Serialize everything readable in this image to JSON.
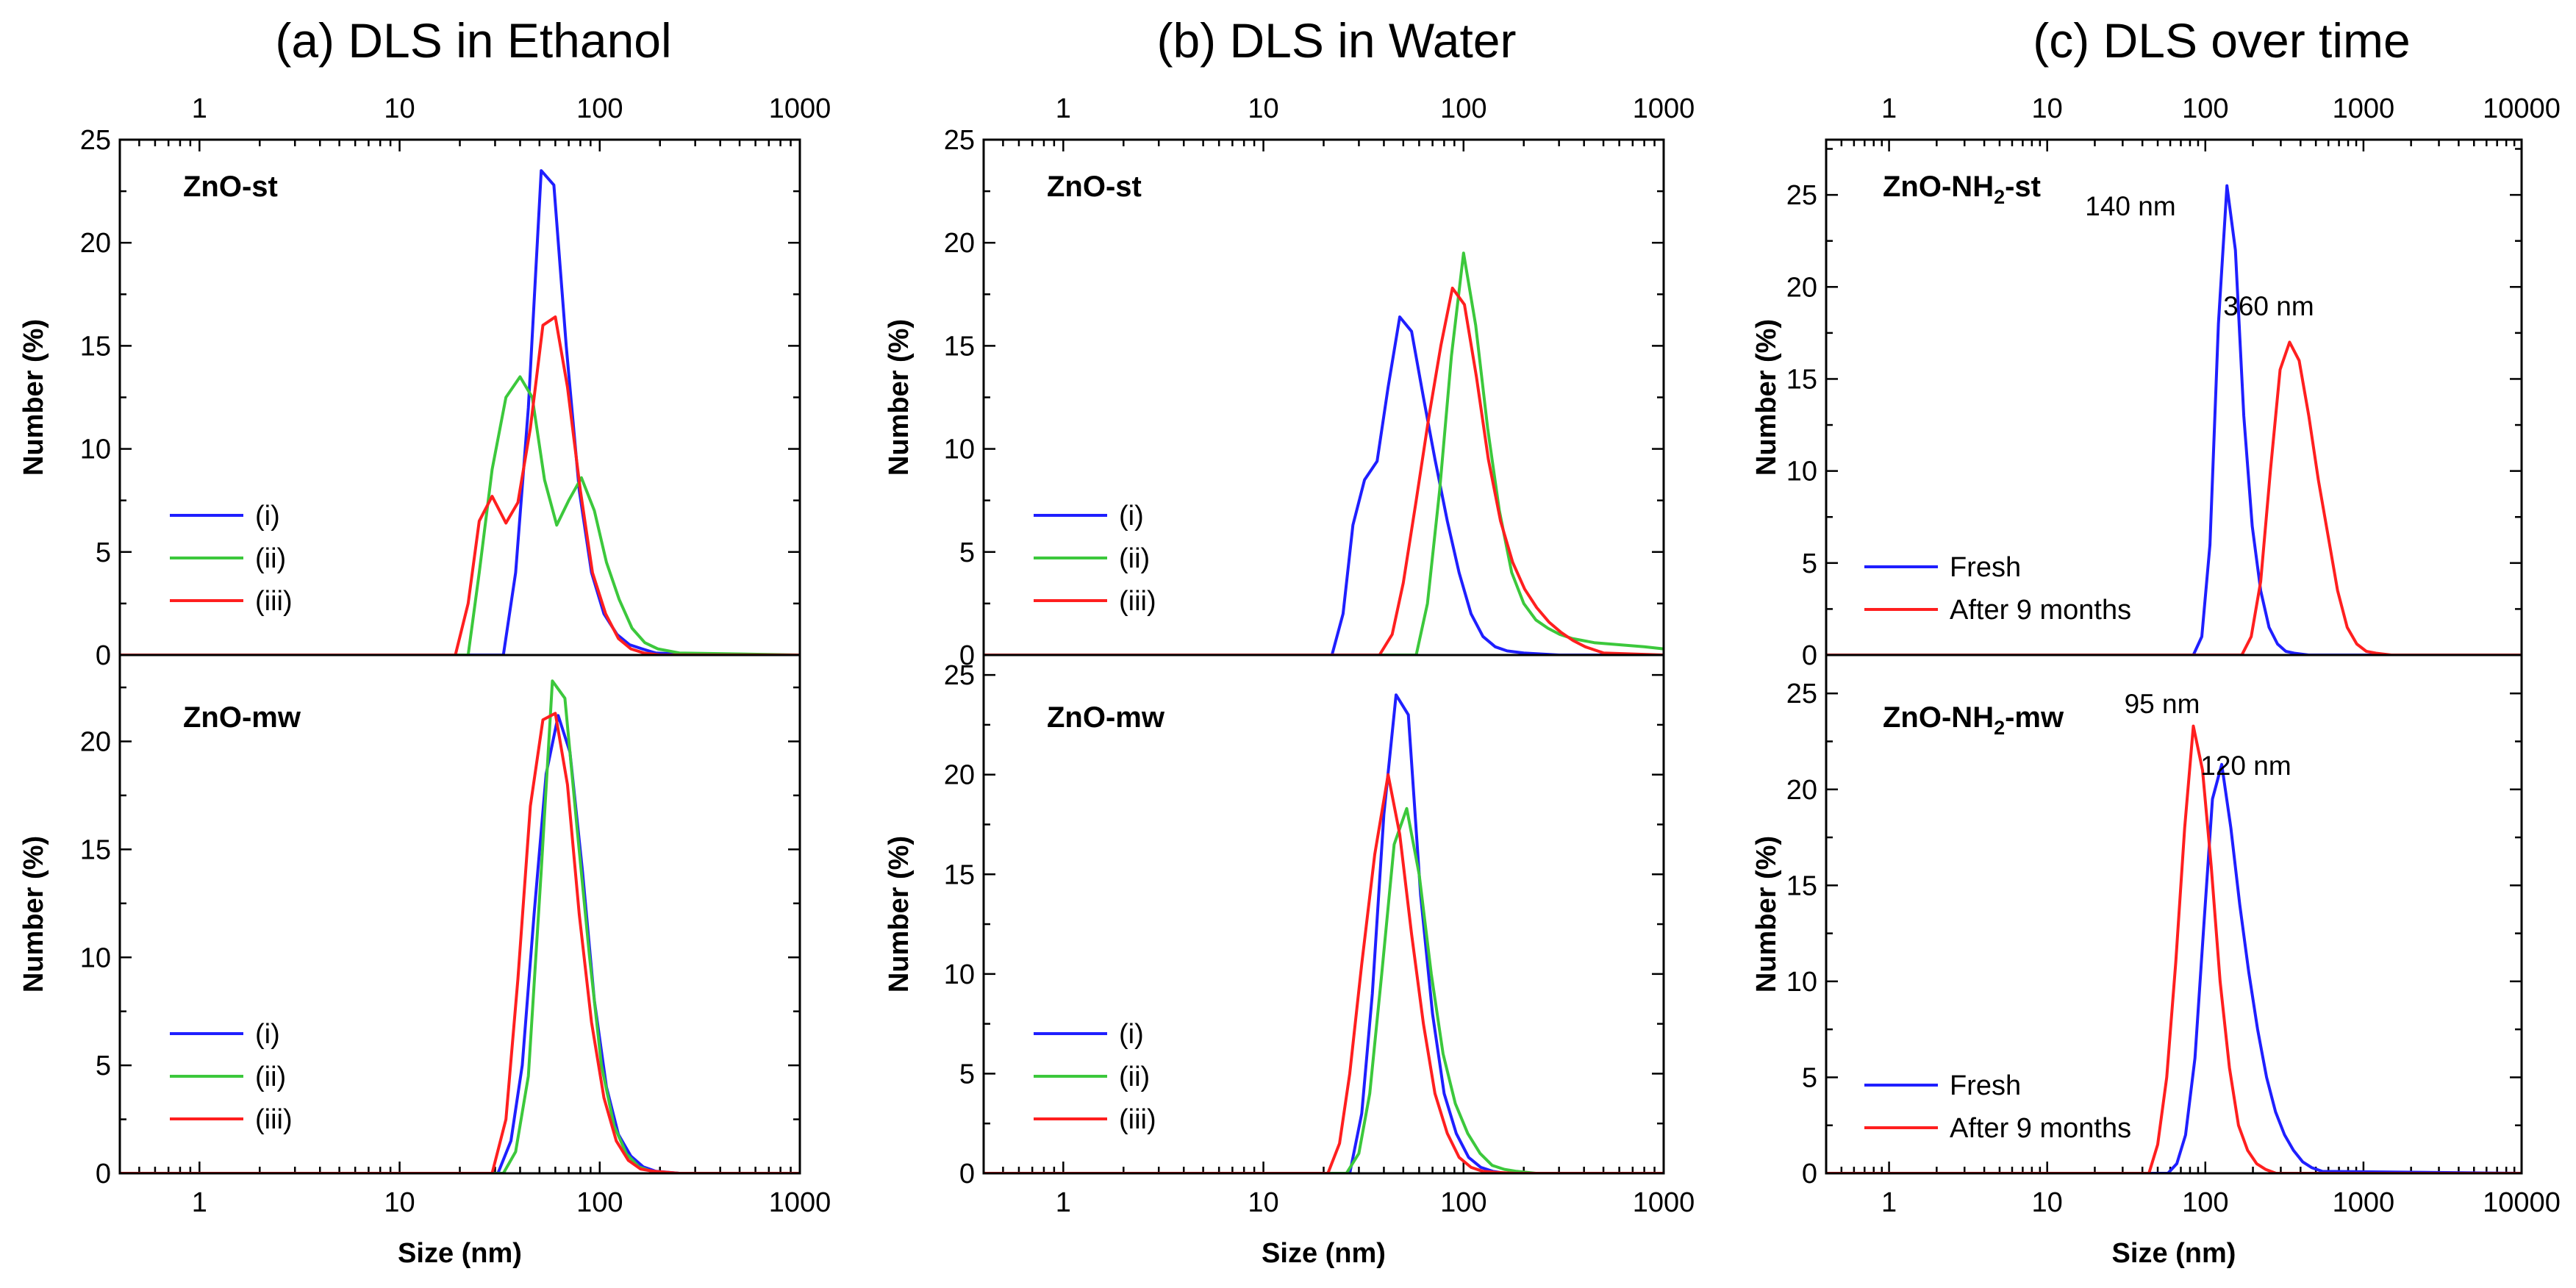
{
  "chart_data": [
    {
      "type": "line",
      "title": "(a) DLS in Ethanol",
      "xlabel": "Size (nm)",
      "ylabel": "Number (%)",
      "xscale": "log",
      "xlim": [
        0.4,
        1000
      ],
      "xticks": [
        "1",
        "10",
        "100",
        "1000"
      ],
      "subplots": [
        {
          "sample": "ZnO-st",
          "ylim": [
            0,
            25
          ],
          "yticks": [
            "0",
            "5",
            "10",
            "15",
            "20",
            "25"
          ],
          "legend": [
            "(i)",
            "(ii)",
            "(iii)"
          ],
          "series": [
            {
              "name": "(i)",
              "color": "#1f1fff",
              "x": [
                0.4,
                33,
                38,
                44,
                51,
                59,
                68,
                79,
                91,
                105,
                122,
                141,
                163,
                190,
                250,
                400,
                1000
              ],
              "y": [
                0,
                0,
                4,
                12,
                23.5,
                22.8,
                15,
                8,
                4,
                2,
                1,
                0.5,
                0.3,
                0.1,
                0.05,
                0,
                0
              ]
            },
            {
              "name": "(ii)",
              "color": "#3cc83c",
              "x": [
                0.4,
                22,
                25,
                29,
                34,
                40,
                46,
                53,
                61,
                70,
                81,
                94,
                108,
                125,
                145,
                168,
                195,
                250,
                1000
              ],
              "y": [
                0,
                0,
                4,
                9,
                12.5,
                13.5,
                12.5,
                8.5,
                6.3,
                7.5,
                8.6,
                7,
                4.5,
                2.7,
                1.3,
                0.6,
                0.3,
                0.1,
                0
              ]
            },
            {
              "name": "(iii)",
              "color": "#ff1f1f",
              "x": [
                0.4,
                19,
                22,
                25,
                29,
                34,
                39,
                45,
                52,
                60,
                69,
                80,
                92,
                107,
                124,
                143,
                166,
                200,
                1000
              ],
              "y": [
                0,
                0,
                2.5,
                6.5,
                7.7,
                6.4,
                7.4,
                11,
                16,
                16.4,
                13,
                8,
                4,
                2,
                0.8,
                0.3,
                0.1,
                0,
                0
              ]
            }
          ]
        },
        {
          "sample": "ZnO-mw",
          "ylim": [
            0,
            24
          ],
          "yticks": [
            "0",
            "5",
            "10",
            "15",
            "20"
          ],
          "legend": [
            "(i)",
            "(ii)",
            "(iii)"
          ],
          "series": [
            {
              "name": "(i)",
              "color": "#1f1fff",
              "x": [
                0.4,
                31,
                36,
                41,
                47,
                54,
                62,
                71,
                82,
                94,
                108,
                124,
                143,
                165,
                190,
                250,
                400,
                1000
              ],
              "y": [
                0,
                0,
                1.5,
                5,
                12,
                18.5,
                21.2,
                19.5,
                14,
                8,
                4,
                1.8,
                0.8,
                0.3,
                0.1,
                0,
                0,
                0
              ]
            },
            {
              "name": "(ii)",
              "color": "#3cc83c",
              "x": [
                0.4,
                33,
                38,
                44,
                51,
                58,
                67,
                77,
                89,
                102,
                118,
                136,
                157,
                181,
                210,
                300,
                1000
              ],
              "y": [
                0,
                0,
                1,
                4.5,
                14,
                22.8,
                22,
                16,
                10,
                5,
                2.2,
                0.9,
                0.3,
                0.1,
                0,
                0,
                0
              ]
            },
            {
              "name": "(iii)",
              "color": "#ff1f1f",
              "x": [
                0.4,
                29,
                34,
                39,
                45,
                52,
                60,
                69,
                79,
                91,
                105,
                121,
                139,
                160,
                185,
                250,
                1000
              ],
              "y": [
                0,
                0,
                2.5,
                9,
                17,
                21,
                21.3,
                18,
                12,
                7,
                3.5,
                1.5,
                0.6,
                0.2,
                0.1,
                0,
                0
              ]
            }
          ]
        }
      ]
    },
    {
      "type": "line",
      "title": "(b) DLS in Water",
      "xlabel": "Size (nm)",
      "ylabel": "Number (%)",
      "xscale": "log",
      "xlim": [
        0.4,
        1000
      ],
      "xticks": [
        "1",
        "10",
        "100",
        "1000"
      ],
      "subplots": [
        {
          "sample": "ZnO-st",
          "ylim": [
            0,
            25
          ],
          "yticks": [
            "0",
            "5",
            "10",
            "15",
            "20",
            "25"
          ],
          "legend": [
            "(i)",
            "(ii)",
            "(iii)"
          ],
          "series": [
            {
              "name": "(i)",
              "color": "#1f1fff",
              "x": [
                0.4,
                22,
                25,
                28,
                32,
                37,
                42,
                48,
                55,
                63,
                72,
                83,
                95,
                109,
                125,
                144,
                165,
                200,
                300,
                1000
              ],
              "y": [
                0,
                0,
                2,
                6.3,
                8.5,
                9.4,
                13,
                16.4,
                15.7,
                12.5,
                9.5,
                6.5,
                4,
                2,
                0.9,
                0.4,
                0.2,
                0.1,
                0,
                0
              ]
            },
            {
              "name": "(ii)",
              "color": "#3cc83c",
              "x": [
                0.4,
                58,
                66,
                76,
                87,
                100,
                115,
                132,
                151,
                174,
                200,
                230,
                264,
                303,
                350,
                450,
                600,
                800,
                1000
              ],
              "y": [
                0,
                0,
                2.5,
                8,
                14.5,
                19.5,
                16,
                11,
                7,
                4,
                2.5,
                1.7,
                1.3,
                1,
                0.8,
                0.6,
                0.5,
                0.4,
                0.3
              ]
            },
            {
              "name": "(iii)",
              "color": "#ff1f1f",
              "x": [
                0.4,
                38,
                44,
                50,
                58,
                67,
                77,
                88,
                101,
                116,
                133,
                153,
                176,
                202,
                232,
                267,
                307,
                353,
                406,
                500,
                1000
              ],
              "y": [
                0,
                0,
                1,
                3.5,
                7.5,
                11.5,
                15,
                17.8,
                17,
                13.5,
                9.5,
                6.5,
                4.5,
                3.2,
                2.3,
                1.6,
                1.1,
                0.7,
                0.4,
                0.1,
                0
              ]
            }
          ]
        },
        {
          "sample": "ZnO-mw",
          "ylim": [
            0,
            26
          ],
          "yticks": [
            "0",
            "5",
            "10",
            "15",
            "20",
            "25"
          ],
          "legend": [
            "(i)",
            "(ii)",
            "(iii)"
          ],
          "series": [
            {
              "name": "(i)",
              "color": "#1f1fff",
              "x": [
                0.4,
                27,
                31,
                35,
                40,
                46,
                53,
                61,
                70,
                80,
                92,
                106,
                122,
                140,
                161,
                200,
                1000
              ],
              "y": [
                0,
                0,
                3,
                9,
                18,
                24,
                23,
                14,
                8,
                4,
                2,
                0.8,
                0.3,
                0.1,
                0,
                0,
                0
              ]
            },
            {
              "name": "(ii)",
              "color": "#3cc83c",
              "x": [
                0.4,
                26,
                30,
                34,
                39,
                45,
                52,
                60,
                69,
                79,
                91,
                105,
                121,
                139,
                160,
                184,
                230,
                1000
              ],
              "y": [
                0,
                0,
                1,
                4,
                10,
                16.5,
                18.3,
                15,
                10,
                6,
                3.5,
                2,
                1,
                0.4,
                0.2,
                0.1,
                0,
                0
              ]
            },
            {
              "name": "(iii)",
              "color": "#ff1f1f",
              "x": [
                0.4,
                21,
                24,
                27,
                31,
                36,
                42,
                48,
                55,
                63,
                72,
                83,
                95,
                109,
                125,
                144,
                180,
                1000
              ],
              "y": [
                0,
                0,
                1.5,
                5,
                10.5,
                16,
                20,
                17,
                12,
                7.5,
                4,
                2,
                0.8,
                0.3,
                0.1,
                0.05,
                0,
                0
              ]
            }
          ]
        }
      ]
    },
    {
      "type": "line",
      "title": "(c) DLS over time",
      "xlabel": "Size (nm)",
      "ylabel": "Number (%)",
      "xscale": "log",
      "xlim": [
        0.4,
        10000
      ],
      "xticks": [
        "1",
        "10",
        "100",
        "1000",
        "10000"
      ],
      "subplots": [
        {
          "sample": "ZnO-NH",
          "sample_sub": "2",
          "sample_suffix": "-st",
          "ylim": [
            0,
            28
          ],
          "yticks": [
            "0",
            "5",
            "10",
            "15",
            "20",
            "25"
          ],
          "legend": [
            "Fresh",
            "After 9 months"
          ],
          "annotations": [
            "140 nm",
            "360 nm"
          ],
          "series": [
            {
              "name": "Fresh",
              "color": "#1f1fff",
              "x": [
                0.4,
                84,
                95,
                107,
                121,
                137,
                155,
                175,
                198,
                224,
                253,
                286,
                323,
                365,
                450,
                10000
              ],
              "y": [
                0,
                0,
                1,
                6,
                18,
                25.5,
                22,
                13,
                7,
                3.5,
                1.5,
                0.6,
                0.2,
                0.1,
                0,
                0
              ]
            },
            {
              "name": "After 9 months",
              "color": "#ff1f1f",
              "x": [
                0.4,
                170,
                195,
                224,
                258,
                297,
                341,
                392,
                451,
                519,
                597,
                686,
                789,
                907,
                1043,
                1200,
                1500,
                10000
              ],
              "y": [
                0,
                0,
                1,
                4,
                10,
                15.5,
                17,
                16,
                13,
                9.5,
                6.5,
                3.5,
                1.5,
                0.6,
                0.2,
                0.1,
                0,
                0
              ]
            }
          ]
        },
        {
          "sample": "ZnO-NH",
          "sample_sub": "2",
          "sample_suffix": "-mw",
          "ylim": [
            0,
            27
          ],
          "yticks": [
            "0",
            "5",
            "10",
            "15",
            "20",
            "25"
          ],
          "legend": [
            "Fresh",
            "After 9 months"
          ],
          "annotations": [
            "95 nm",
            "120 nm"
          ],
          "series": [
            {
              "name": "Fresh",
              "color": "#1f1fff",
              "x": [
                0.4,
                58,
                66,
                75,
                86,
                98,
                111,
                127,
                145,
                165,
                188,
                214,
                244,
                278,
                317,
                361,
                412,
                470,
                550,
                10000
              ],
              "y": [
                0,
                0,
                0.5,
                2,
                6,
                13,
                19.5,
                21.3,
                18,
                14,
                10.5,
                7.5,
                5,
                3.2,
                2,
                1.2,
                0.6,
                0.3,
                0.1,
                0
              ]
            },
            {
              "name": "After 9 months",
              "color": "#ff1f1f",
              "x": [
                0.4,
                44,
                50,
                57,
                65,
                74,
                84,
                96,
                109,
                124,
                142,
                162,
                185,
                211,
                241,
                280,
                10000
              ],
              "y": [
                0,
                0,
                1.5,
                5,
                11,
                18,
                23.3,
                21,
                16,
                10,
                5.5,
                2.5,
                1.2,
                0.5,
                0.2,
                0,
                0
              ]
            }
          ]
        }
      ]
    }
  ]
}
